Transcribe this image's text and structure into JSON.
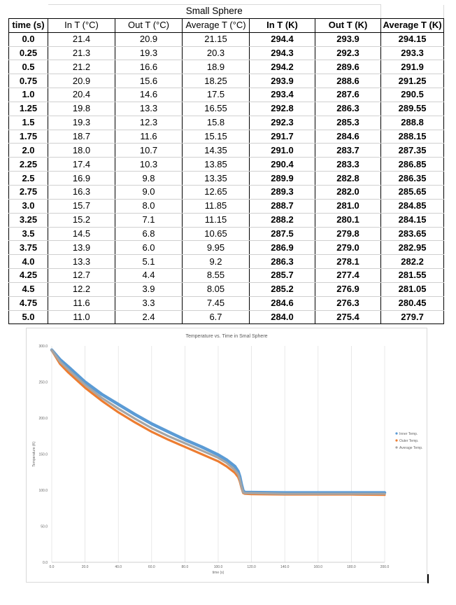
{
  "table": {
    "title": "Small Sphere",
    "headers": [
      "time (s)",
      "In T (°C)",
      "Out T (°C)",
      "Average T (°C)",
      "In T (K)",
      "Out T (K)",
      "Average T (K)"
    ],
    "rows": [
      [
        "0.0",
        "21.4",
        "20.9",
        "21.15",
        "294.4",
        "293.9",
        "294.15"
      ],
      [
        "0.25",
        "21.3",
        "19.3",
        "20.3",
        "294.3",
        "292.3",
        "293.3"
      ],
      [
        "0.5",
        "21.2",
        "16.6",
        "18.9",
        "294.2",
        "289.6",
        "291.9"
      ],
      [
        "0.75",
        "20.9",
        "15.6",
        "18.25",
        "293.9",
        "288.6",
        "291.25"
      ],
      [
        "1.0",
        "20.4",
        "14.6",
        "17.5",
        "293.4",
        "287.6",
        "290.5"
      ],
      [
        "1.25",
        "19.8",
        "13.3",
        "16.55",
        "292.8",
        "286.3",
        "289.55"
      ],
      [
        "1.5",
        "19.3",
        "12.3",
        "15.8",
        "292.3",
        "285.3",
        "288.8"
      ],
      [
        "1.75",
        "18.7",
        "11.6",
        "15.15",
        "291.7",
        "284.6",
        "288.15"
      ],
      [
        "2.0",
        "18.0",
        "10.7",
        "14.35",
        "291.0",
        "283.7",
        "287.35"
      ],
      [
        "2.25",
        "17.4",
        "10.3",
        "13.85",
        "290.4",
        "283.3",
        "286.85"
      ],
      [
        "2.5",
        "16.9",
        "9.8",
        "13.35",
        "289.9",
        "282.8",
        "286.35"
      ],
      [
        "2.75",
        "16.3",
        "9.0",
        "12.65",
        "289.3",
        "282.0",
        "285.65"
      ],
      [
        "3.0",
        "15.7",
        "8.0",
        "11.85",
        "288.7",
        "281.0",
        "284.85"
      ],
      [
        "3.25",
        "15.2",
        "7.1",
        "11.15",
        "288.2",
        "280.1",
        "284.15"
      ],
      [
        "3.5",
        "14.5",
        "6.8",
        "10.65",
        "287.5",
        "279.8",
        "283.65"
      ],
      [
        "3.75",
        "13.9",
        "6.0",
        "9.95",
        "286.9",
        "279.0",
        "282.95"
      ],
      [
        "4.0",
        "13.3",
        "5.1",
        "9.2",
        "286.3",
        "278.1",
        "282.2"
      ],
      [
        "4.25",
        "12.7",
        "4.4",
        "8.55",
        "285.7",
        "277.4",
        "281.55"
      ],
      [
        "4.5",
        "12.2",
        "3.9",
        "8.05",
        "285.2",
        "276.9",
        "281.05"
      ],
      [
        "4.75",
        "11.6",
        "3.3",
        "7.45",
        "284.6",
        "276.3",
        "280.45"
      ],
      [
        "5.0",
        "11.0",
        "2.4",
        "6.7",
        "284.0",
        "275.4",
        "279.7"
      ]
    ]
  },
  "chart_data": {
    "type": "line",
    "title": "Temperature vs. Time in Smal Sphere",
    "xlabel": "time (s)",
    "ylabel": "Temperature (K)",
    "xlim": [
      0,
      200
    ],
    "ylim": [
      0,
      300
    ],
    "x_ticks": [
      0,
      20,
      40,
      60,
      80,
      100,
      120,
      140,
      160,
      180,
      200
    ],
    "x_tick_labels": [
      "0.0",
      "20.0",
      "40.0",
      "60.0",
      "80.0",
      "100.0",
      "120.0",
      "140.0",
      "160.0",
      "180.0",
      "200.0"
    ],
    "y_ticks": [
      0,
      50,
      100,
      150,
      200,
      250,
      300
    ],
    "y_tick_labels": [
      "0.0",
      "50.0",
      "100.0",
      "150.0",
      "200.0",
      "250.0",
      "300.0"
    ],
    "grid": "vertical",
    "legend": "right",
    "x": [
      0,
      5,
      10,
      20,
      30,
      40,
      50,
      60,
      70,
      80,
      90,
      100,
      105,
      110,
      112,
      113,
      114,
      115,
      116,
      120,
      140,
      160,
      180,
      200
    ],
    "series": [
      {
        "name": "Inner Temp.",
        "color": "#5b9bd5",
        "values": [
          294.4,
          281,
          271,
          250,
          233,
          219,
          205,
          192,
          181,
          170,
          160,
          149,
          142,
          133,
          126,
          119,
          108,
          99,
          97,
          97,
          96.5,
          96.5,
          96.5,
          96.5
        ]
      },
      {
        "name": "Outer Temp.",
        "color": "#ed7d31",
        "values": [
          293.9,
          275,
          263,
          242,
          224,
          208,
          194,
          181,
          170,
          160,
          150,
          140,
          133,
          124,
          118,
          112,
          103,
          96,
          95,
          94.5,
          94,
          94,
          94,
          93.5
        ]
      },
      {
        "name": "Average Temp.",
        "color": "#a5a5a5",
        "values": [
          294.15,
          278,
          267,
          246,
          228,
          213,
          199,
          186,
          175,
          165,
          155,
          145,
          138,
          128,
          122,
          115,
          105,
          97,
          96,
          96,
          95,
          95,
          95,
          95
        ]
      }
    ]
  }
}
